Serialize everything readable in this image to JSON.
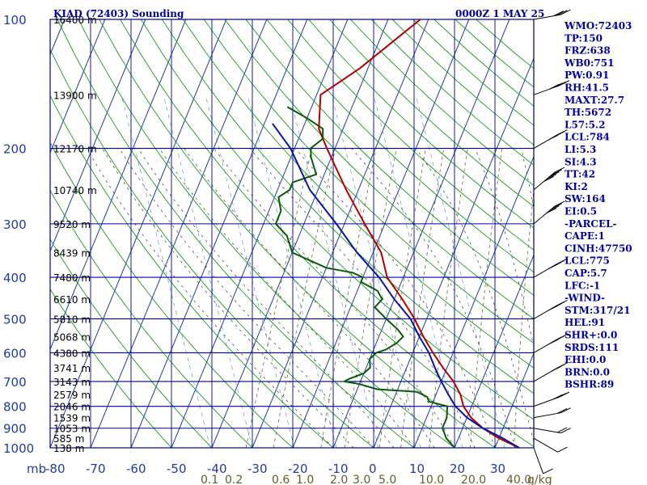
{
  "header": {
    "station": "KIAD (72403) Sounding",
    "time": "0000Z  1 MAY 25"
  },
  "chart_data": {
    "type": "line",
    "title": "KIAD (72403) Sounding",
    "subtitle": "0000Z  1 MAY 25",
    "x_axis_unit": "mb",
    "mixing_unit": "g/kg",
    "pressure_ticks": [
      "100",
      "200",
      "300",
      "400",
      "500",
      "600",
      "700",
      "800",
      "900",
      "1000"
    ],
    "pressure_values": [
      100,
      200,
      300,
      400,
      500,
      600,
      700,
      800,
      900,
      1000
    ],
    "temperature_ticks": [
      "-80",
      "-70",
      "-60",
      "-50",
      "-40",
      "-30",
      "-20",
      "-10",
      "0",
      "10",
      "20",
      "30"
    ],
    "temperature_values": [
      -80,
      -70,
      -60,
      -50,
      -40,
      -30,
      -20,
      -10,
      0,
      10,
      20,
      30
    ],
    "mixing_ratio_labels": [
      "0.1",
      "0.2",
      "0.6",
      "1.0",
      "2.0",
      "3.0",
      "5.0",
      "10.0",
      "20.0",
      "40.0"
    ],
    "height_labels": [
      "16400 m",
      "13900 m",
      "12170 m",
      "10740 m",
      "9520 m",
      "8439 m",
      "7480 m",
      "6610 m",
      "5810 m",
      "5068 m",
      "4380 m",
      "3741 m",
      "3143 m",
      "2579 m",
      "2046 m",
      "1539 m",
      "1053 m",
      "585 m",
      "138 m"
    ],
    "height_pressures": [
      100,
      150,
      200,
      250,
      300,
      350,
      400,
      450,
      500,
      550,
      600,
      650,
      700,
      750,
      800,
      850,
      900,
      950,
      1000
    ],
    "series": [
      {
        "name": "",
        "color": "#b40000",
        "points": [
          [
            1000,
            26
          ],
          [
            950,
            20
          ],
          [
            900,
            15
          ],
          [
            850,
            11
          ],
          [
            800,
            8
          ],
          [
            750,
            6
          ],
          [
            700,
            3
          ],
          [
            650,
            -1
          ],
          [
            600,
            -5
          ],
          [
            550,
            -9
          ],
          [
            500,
            -13
          ],
          [
            450,
            -18
          ],
          [
            400,
            -24
          ],
          [
            350,
            -28
          ],
          [
            300,
            -35
          ],
          [
            250,
            -43
          ],
          [
            200,
            -52
          ],
          [
            180,
            -56
          ],
          [
            150,
            -59
          ],
          [
            130,
            -52
          ],
          [
            100,
            -42
          ]
        ]
      },
      {
        "name": "",
        "color": "#0a5a0a",
        "points": [
          [
            1000,
            10
          ],
          [
            950,
            7
          ],
          [
            900,
            5
          ],
          [
            850,
            5
          ],
          [
            800,
            4
          ],
          [
            780,
            -1
          ],
          [
            760,
            -2
          ],
          [
            740,
            -5
          ],
          [
            730,
            -15
          ],
          [
            710,
            -20
          ],
          [
            700,
            -24
          ],
          [
            690,
            -23
          ],
          [
            670,
            -20
          ],
          [
            650,
            -19
          ],
          [
            620,
            -20
          ],
          [
            600,
            -19
          ],
          [
            590,
            -17
          ],
          [
            570,
            -15
          ],
          [
            550,
            -14
          ],
          [
            530,
            -16
          ],
          [
            500,
            -20
          ],
          [
            470,
            -24
          ],
          [
            450,
            -23
          ],
          [
            430,
            -25
          ],
          [
            410,
            -30
          ],
          [
            400,
            -30
          ],
          [
            390,
            -33
          ],
          [
            380,
            -40
          ],
          [
            350,
            -50
          ],
          [
            320,
            -53
          ],
          [
            300,
            -57
          ],
          [
            280,
            -57
          ],
          [
            260,
            -59
          ],
          [
            250,
            -57
          ],
          [
            240,
            -57
          ],
          [
            230,
            -52
          ],
          [
            210,
            -55
          ],
          [
            200,
            -56
          ],
          [
            190,
            -54
          ],
          [
            180,
            -55
          ],
          [
            170,
            -60
          ],
          [
            160,
            -66
          ]
        ]
      },
      {
        "name": "",
        "color": "#0a14a0",
        "points": [
          [
            1000,
            26
          ],
          [
            950,
            21
          ],
          [
            900,
            15
          ],
          [
            850,
            10
          ],
          [
            800,
            6
          ],
          [
            750,
            3
          ],
          [
            700,
            0
          ],
          [
            650,
            -3
          ],
          [
            600,
            -6
          ],
          [
            550,
            -10
          ],
          [
            500,
            -14
          ],
          [
            450,
            -20
          ],
          [
            400,
            -26
          ],
          [
            350,
            -34
          ],
          [
            300,
            -42
          ],
          [
            250,
            -52
          ],
          [
            200,
            -61
          ],
          [
            175,
            -68
          ]
        ]
      }
    ],
    "wind_barbs": [
      {
        "p": 1000,
        "dir": 200,
        "spd": 5
      },
      {
        "p": 950,
        "dir": 240,
        "spd": 10
      },
      {
        "p": 900,
        "dir": 260,
        "spd": 15
      },
      {
        "p": 850,
        "dir": 280,
        "spd": 20
      },
      {
        "p": 800,
        "dir": 290,
        "spd": 25
      },
      {
        "p": 700,
        "dir": 300,
        "spd": 30
      },
      {
        "p": 600,
        "dir": 300,
        "spd": 35
      },
      {
        "p": 500,
        "dir": 300,
        "spd": 40
      },
      {
        "p": 400,
        "dir": 300,
        "spd": 35
      },
      {
        "p": 300,
        "dir": 310,
        "spd": 40
      },
      {
        "p": 250,
        "dir": 310,
        "spd": 45
      },
      {
        "p": 200,
        "dir": 300,
        "spd": 40
      },
      {
        "p": 150,
        "dir": 290,
        "spd": 35
      },
      {
        "p": 100,
        "dir": 280,
        "spd": 30
      }
    ],
    "grid": true
  },
  "indices": [
    "WMO:72403",
    "TP:150",
    "FRZ:638",
    "WB0:751",
    "PW:0.91",
    "RH:41.5",
    "MAXT:27.7",
    "TH:5672",
    "L57:5.2",
    "LCL:784",
    "LI:5.3",
    "SI:4.3",
    "TT:42",
    "KI:2",
    "SW:164",
    "EI:0.5",
    "-PARCEL-",
    "CAPE:1",
    "CINH:47750",
    "LCL:775",
    "CAP:5.7",
    "LFC:-1",
    "-WIND-",
    "STM:317/21",
    "HEL:91",
    "SHR+:0.0",
    "SRDS:111",
    "EHI:0.0",
    "BRN:0.0",
    "BSHR:89"
  ],
  "colors": {
    "axis": "#00009c",
    "isotherm": "#1f3ca0",
    "dry_adiabat": "#1a9a1a",
    "moist_adiabat": "#2a7a2a",
    "mixing_ratio": "#4a8ad0"
  }
}
